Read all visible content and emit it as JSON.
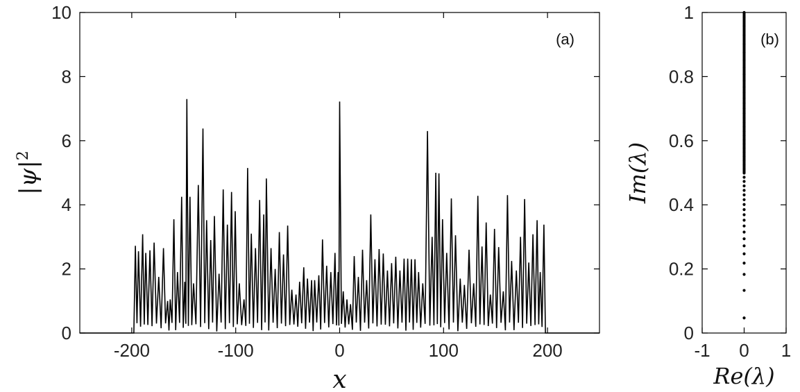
{
  "chart_data": [
    {
      "type": "line",
      "panel_label": "(a)",
      "xlabel": "x",
      "ylabel": "|ψ|",
      "ylabel_superscript": "2",
      "xlim": [
        -250,
        250
      ],
      "ylim": [
        0,
        10
      ],
      "xticks": [
        -200,
        -100,
        0,
        100,
        200
      ],
      "xtick_labels": [
        "-200",
        "-100",
        "0",
        "100",
        "200"
      ],
      "yticks": [
        0,
        2,
        4,
        6,
        8,
        10
      ],
      "ytick_labels": [
        "0",
        "2",
        "4",
        "6",
        "8",
        "10"
      ],
      "grid": false,
      "line_color": "#000000",
      "support": [
        -198,
        198
      ],
      "peaks": [
        [
          -196.5,
          2.72
        ],
        [
          -193.5,
          2.55
        ],
        [
          -189.5,
          3.08
        ],
        [
          -186.5,
          2.5
        ],
        [
          -182.5,
          2.58
        ],
        [
          -178.5,
          2.82
        ],
        [
          -174,
          1.75
        ],
        [
          -169.5,
          2.65
        ],
        [
          -165.5,
          1.0
        ],
        [
          -163,
          1.05
        ],
        [
          -159.5,
          3.55
        ],
        [
          -156,
          1.9
        ],
        [
          -152,
          4.25
        ],
        [
          -149,
          1.6
        ],
        [
          -147,
          7.3
        ],
        [
          -144,
          4.25
        ],
        [
          -140.5,
          1.55
        ],
        [
          -136,
          4.62
        ],
        [
          -131.5,
          6.38
        ],
        [
          -128,
          3.52
        ],
        [
          -124,
          2.9
        ],
        [
          -120.5,
          3.65
        ],
        [
          -116,
          1.85
        ],
        [
          -112,
          4.48
        ],
        [
          -108,
          3.38
        ],
        [
          -104,
          4.4
        ],
        [
          -100.5,
          3.8
        ],
        [
          -96.5,
          1.55
        ],
        [
          -92,
          1.05
        ],
        [
          -88.5,
          5.15
        ],
        [
          -85,
          3.1
        ],
        [
          -81,
          2.65
        ],
        [
          -77,
          4.15
        ],
        [
          -73,
          3.7
        ],
        [
          -70.5,
          4.82
        ],
        [
          -66,
          2.65
        ],
        [
          -62,
          2.0
        ],
        [
          -58,
          3.15
        ],
        [
          -54,
          2.45
        ],
        [
          -50,
          3.35
        ],
        [
          -46,
          1.35
        ],
        [
          -42,
          1.2
        ],
        [
          -38.5,
          1.6
        ],
        [
          -34.5,
          2.05
        ],
        [
          -31,
          1.7
        ],
        [
          -27,
          1.65
        ],
        [
          -24,
          1.65
        ],
        [
          -20,
          1.8
        ],
        [
          -16.5,
          2.92
        ],
        [
          -12.5,
          2.1
        ],
        [
          -8.5,
          1.9
        ],
        [
          -4.5,
          2.5
        ],
        [
          -1.5,
          1.9
        ],
        [
          0,
          7.22
        ],
        [
          3.5,
          1.3
        ],
        [
          7,
          1.05
        ],
        [
          10.5,
          0.9
        ],
        [
          14,
          2.4
        ],
        [
          18,
          1.75
        ],
        [
          22,
          2.6
        ],
        [
          26,
          1.65
        ],
        [
          30,
          3.7
        ],
        [
          34,
          2.3
        ],
        [
          38,
          2.62
        ],
        [
          42,
          2.48
        ],
        [
          46,
          1.95
        ],
        [
          50,
          2.18
        ],
        [
          54,
          2.38
        ],
        [
          58,
          1.95
        ],
        [
          62,
          2.32
        ],
        [
          65.5,
          2.32
        ],
        [
          69,
          2.3
        ],
        [
          72.5,
          2.3
        ],
        [
          76,
          1.9
        ],
        [
          80,
          1.55
        ],
        [
          84.5,
          6.3
        ],
        [
          89,
          3.0
        ],
        [
          92.5,
          5.0
        ],
        [
          95.5,
          4.98
        ],
        [
          99,
          3.55
        ],
        [
          103,
          2.5
        ],
        [
          107.5,
          4.2
        ],
        [
          111.5,
          3.05
        ],
        [
          116,
          1.7
        ],
        [
          120,
          1.5
        ],
        [
          124.5,
          2.6
        ],
        [
          129,
          1.55
        ],
        [
          133,
          4.28
        ],
        [
          137,
          2.7
        ],
        [
          141,
          3.45
        ],
        [
          145,
          1.2
        ],
        [
          149,
          3.25
        ],
        [
          153,
          2.68
        ],
        [
          157.5,
          1.3
        ],
        [
          161.5,
          4.3
        ],
        [
          165.5,
          2.25
        ],
        [
          170,
          1.95
        ],
        [
          174,
          3.0
        ],
        [
          178,
          4.18
        ],
        [
          182,
          2.2
        ],
        [
          186,
          3.08
        ],
        [
          190,
          3.52
        ],
        [
          193,
          1.9
        ],
        [
          196.5,
          3.38
        ]
      ]
    },
    {
      "type": "scatter",
      "panel_label": "(b)",
      "xlabel": "Re(λ)",
      "ylabel": "Im(λ)",
      "xlim": [
        -1,
        1
      ],
      "ylim": [
        0,
        1
      ],
      "xticks": [
        -1,
        0,
        1
      ],
      "xtick_labels": [
        "-1",
        "0",
        "1"
      ],
      "yticks": [
        0,
        0.2,
        0.4,
        0.6,
        0.8,
        1
      ],
      "ytick_labels": [
        "0",
        "0.2",
        "0.4",
        "0.6",
        "0.8",
        "1"
      ],
      "grid": false,
      "marker_color": "#000000",
      "points_re": 0,
      "points_im": [
        0.047,
        0.133,
        0.183,
        0.218,
        0.247,
        0.272,
        0.294,
        0.315,
        0.334,
        0.352,
        0.369,
        0.385,
        0.401,
        0.416,
        0.431,
        0.445,
        0.459,
        0.473,
        0.486,
        0.499,
        0.512,
        0.525,
        0.538,
        0.551,
        0.564,
        0.577,
        0.59,
        0.603,
        0.616,
        0.629,
        0.643,
        0.657,
        0.671,
        0.686,
        0.701,
        0.717,
        0.733,
        0.75,
        0.768,
        0.787,
        0.807,
        0.828,
        0.851,
        0.875,
        0.901,
        0.929,
        0.958,
        0.985,
        1.0
      ]
    }
  ]
}
